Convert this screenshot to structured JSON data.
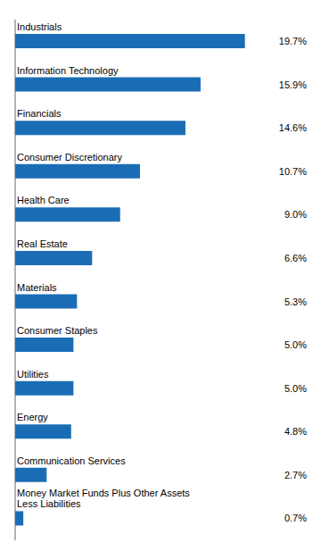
{
  "chart_data": {
    "type": "bar",
    "orientation": "horizontal",
    "categories": [
      "Industrials",
      "Information Technology",
      "Financials",
      "Consumer Discretionary",
      "Health Care",
      "Real Estate",
      "Materials",
      "Consumer Staples",
      "Utilities",
      "Energy",
      "Communication Services",
      "Money Market Funds Plus Other Assets\nLess Liabilities"
    ],
    "values": [
      19.7,
      15.9,
      14.6,
      10.7,
      9.0,
      6.6,
      5.3,
      5.0,
      5.0,
      4.8,
      2.7,
      0.7
    ],
    "value_labels": [
      "19.7%",
      "15.9%",
      "14.6%",
      "10.7%",
      "9.0%",
      "6.6%",
      "5.3%",
      "5.0%",
      "5.0%",
      "4.8%",
      "2.7%",
      "0.7%"
    ],
    "color": "#1A6DB5",
    "xlim": [
      0,
      25
    ],
    "data_labels": true,
    "tick_labels": false,
    "grid": false
  }
}
